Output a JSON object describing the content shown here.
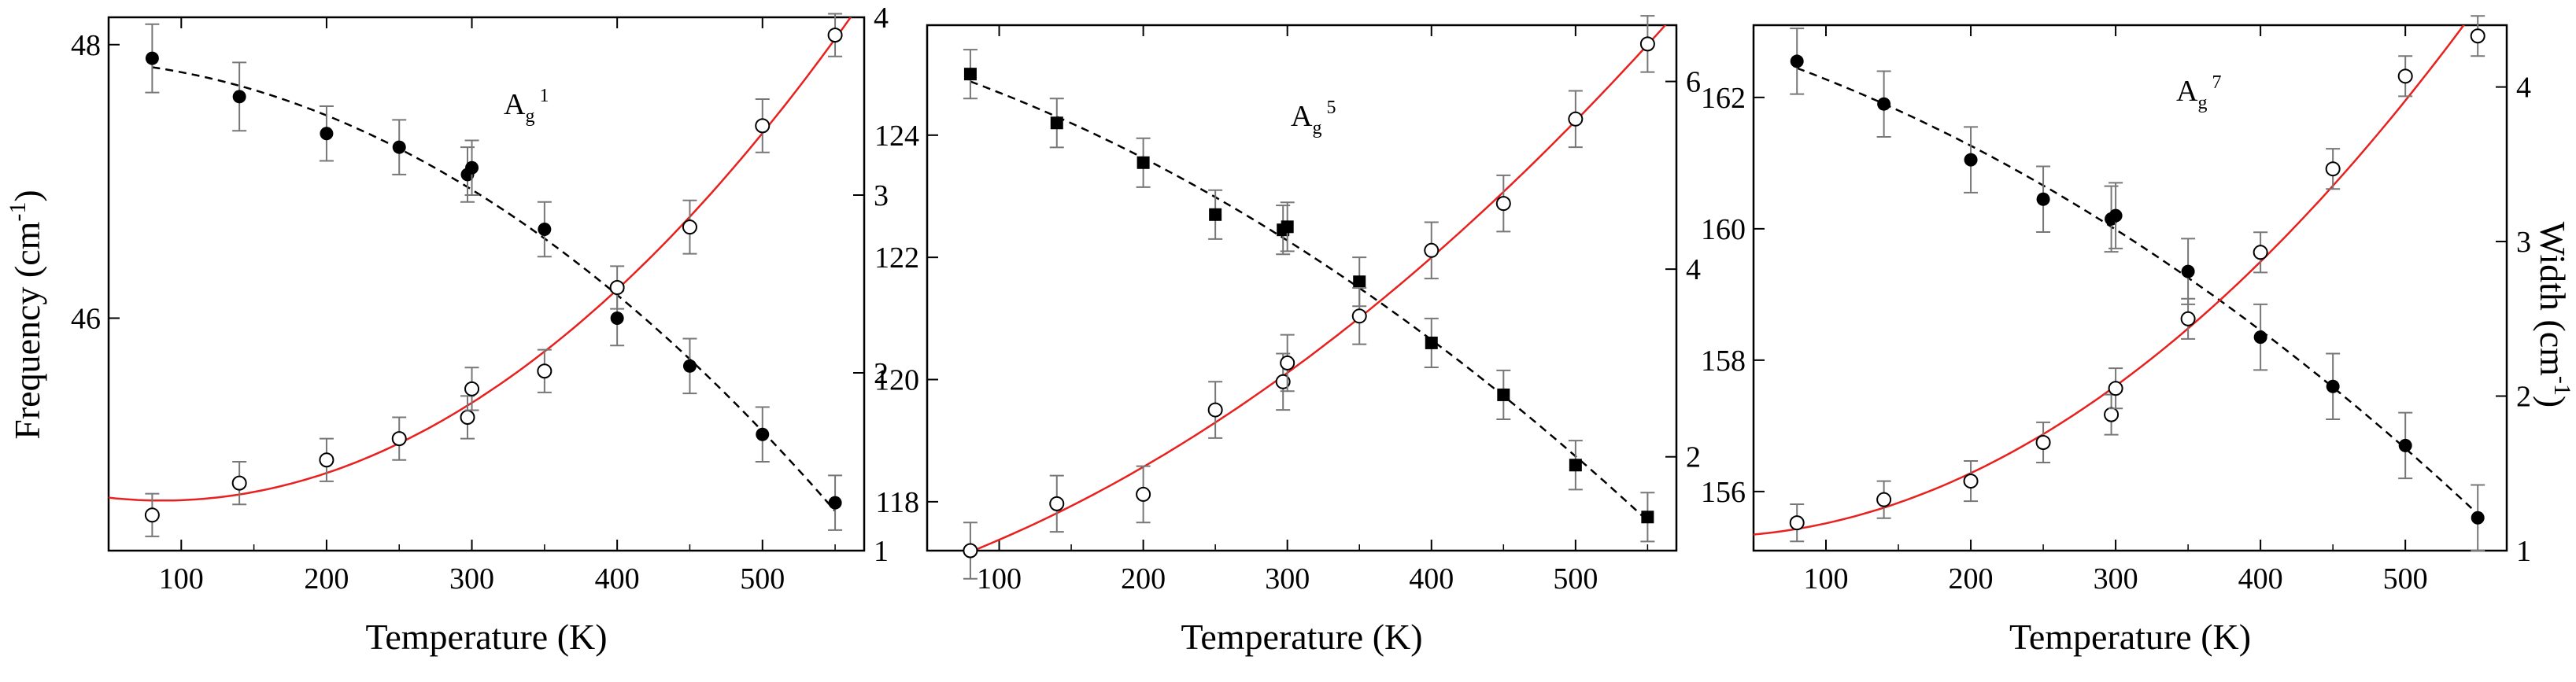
{
  "figure": {
    "ylabel_left": "Frequency (cm",
    "ylabel_left_sup": "-1",
    "ylabel_left_end": ")",
    "ylabel_right": "Width (cm",
    "ylabel_right_sup": "-1",
    "ylabel_right_end": ")"
  },
  "chart_data": [
    {
      "type": "scatter",
      "panel": "left",
      "label_main": "A",
      "label_sub": "g",
      "label_sup": "1",
      "xlabel": "Temperature (K)",
      "xlim": [
        50,
        570
      ],
      "xticks": [
        100,
        200,
        300,
        400,
        500
      ],
      "ylim_left": [
        44.3,
        48.2
      ],
      "yticks_left": [
        46,
        48
      ],
      "ylim_right": [
        1,
        4
      ],
      "yticks_right": [
        1,
        2,
        3,
        4
      ],
      "series": [
        {
          "name": "Frequency",
          "axis": "left",
          "marker": "filled-circle",
          "x": [
            80,
            140,
            200,
            250,
            297,
            300,
            350,
            400,
            450,
            500,
            550
          ],
          "y": [
            47.9,
            47.62,
            47.35,
            47.25,
            47.05,
            47.1,
            46.65,
            46.0,
            45.65,
            45.15,
            44.65
          ],
          "err": [
            0.25,
            0.25,
            0.2,
            0.2,
            0.2,
            0.2,
            0.2,
            0.2,
            0.2,
            0.2,
            0.2
          ],
          "fit": "dashed-black"
        },
        {
          "name": "Width",
          "axis": "right",
          "marker": "open-circle",
          "x": [
            80,
            140,
            200,
            250,
            297,
            300,
            350,
            400,
            450,
            500,
            550
          ],
          "y": [
            1.2,
            1.38,
            1.51,
            1.63,
            1.75,
            1.91,
            2.01,
            2.48,
            2.82,
            3.39,
            3.9
          ],
          "err": [
            0.12,
            0.12,
            0.12,
            0.12,
            0.12,
            0.12,
            0.12,
            0.12,
            0.15,
            0.15,
            0.12
          ],
          "fit": "solid-red"
        }
      ]
    },
    {
      "type": "scatter",
      "panel": "middle",
      "label_main": "A",
      "label_sub": "g",
      "label_sup": "5",
      "xlabel": "Temperature (K)",
      "xlim": [
        50,
        570
      ],
      "xticks": [
        100,
        200,
        300,
        400,
        500
      ],
      "ylim_left": [
        117.2,
        125.8
      ],
      "yticks_left": [
        118,
        120,
        122,
        124
      ],
      "ylim_right": [
        1.0,
        6.6
      ],
      "yticks_right": [
        2,
        4,
        6
      ],
      "series": [
        {
          "name": "Frequency",
          "axis": "left",
          "marker": "filled-square",
          "x": [
            80,
            140,
            200,
            250,
            297,
            300,
            350,
            400,
            450,
            500,
            550
          ],
          "y": [
            125.0,
            124.2,
            123.55,
            122.7,
            122.45,
            122.5,
            121.6,
            120.6,
            119.75,
            118.6,
            117.75
          ],
          "err": [
            0.4,
            0.4,
            0.4,
            0.4,
            0.4,
            0.4,
            0.4,
            0.4,
            0.4,
            0.4,
            0.4
          ],
          "fit": "dashed-black"
        },
        {
          "name": "Width",
          "axis": "right",
          "marker": "open-circle",
          "x": [
            80,
            140,
            200,
            250,
            297,
            300,
            350,
            400,
            450,
            500,
            550
          ],
          "y": [
            1.0,
            1.5,
            1.6,
            2.5,
            2.8,
            3.0,
            3.5,
            4.2,
            4.7,
            5.6,
            6.4
          ],
          "err": [
            0.3,
            0.3,
            0.3,
            0.3,
            0.3,
            0.3,
            0.3,
            0.3,
            0.3,
            0.3,
            0.3
          ],
          "fit": "solid-red"
        }
      ]
    },
    {
      "type": "scatter",
      "panel": "right",
      "label_main": "A",
      "label_sub": "g",
      "label_sup": "7",
      "xlabel": "Temperature (K)",
      "xlim": [
        50,
        570
      ],
      "xticks": [
        100,
        200,
        300,
        400,
        500
      ],
      "ylim_left": [
        155.1,
        163.1
      ],
      "yticks_left": [
        156,
        158,
        160,
        162
      ],
      "ylim_right": [
        1.0,
        4.4
      ],
      "yticks_right": [
        1,
        2,
        3,
        4
      ],
      "series": [
        {
          "name": "Frequency",
          "axis": "left",
          "marker": "filled-circle",
          "x": [
            80,
            140,
            200,
            250,
            297,
            300,
            350,
            400,
            450,
            500,
            550
          ],
          "y": [
            162.55,
            161.9,
            161.05,
            160.45,
            160.15,
            160.2,
            159.35,
            158.35,
            157.6,
            156.7,
            155.6
          ],
          "err": [
            0.5,
            0.5,
            0.5,
            0.5,
            0.5,
            0.5,
            0.5,
            0.5,
            0.5,
            0.5,
            0.5
          ],
          "fit": "dashed-black"
        },
        {
          "name": "Width",
          "axis": "right",
          "marker": "open-circle",
          "x": [
            80,
            140,
            200,
            250,
            297,
            300,
            350,
            400,
            450,
            500,
            550
          ],
          "y": [
            1.18,
            1.33,
            1.45,
            1.7,
            1.88,
            2.05,
            2.5,
            2.93,
            3.47,
            4.07,
            4.33
          ],
          "err": [
            0.12,
            0.12,
            0.13,
            0.13,
            0.13,
            0.13,
            0.13,
            0.13,
            0.13,
            0.13,
            0.13
          ],
          "fit": "solid-red"
        }
      ]
    }
  ]
}
